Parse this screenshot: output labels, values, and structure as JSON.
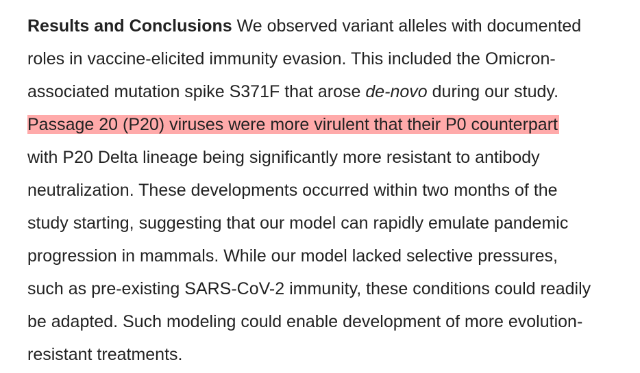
{
  "section": {
    "heading": "Results and Conclusions",
    "line1_rest": " We observed variant alleles with documented",
    "line2": "roles in vaccine-elicited immunity evasion. This included the Omicron-",
    "line3_before": "associated mutation spike S371F that arose ",
    "line3_italic": "de-novo",
    "line3_after": " during our study.",
    "line4_highlighted": "Passage 20 (P20) viruses were more virulent that their P0 counterpart",
    "line5": "with P20 Delta lineage being significantly more resistant to antibody",
    "line6": "neutralization. These developments occurred within two months of the",
    "line7": "study starting, suggesting that our model can rapidly emulate pandemic",
    "line8": "progression in mammals. While our model lacked selective pressures,",
    "line9": "such as pre-existing SARS-CoV-2 immunity, these conditions could readily",
    "line10": "be adapted. Such modeling could enable development of more evolution-",
    "line11": "resistant treatments."
  },
  "colors": {
    "highlight": "#ffaaaa",
    "text": "#222222"
  }
}
